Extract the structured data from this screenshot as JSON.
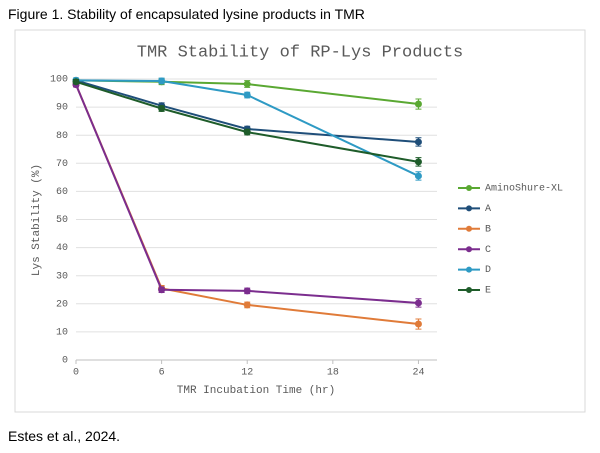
{
  "caption": "Figure 1. Stability of encapsulated lysine products in TMR",
  "source": "Estes et al., 2024.",
  "chart_data": {
    "type": "line",
    "title": "TMR Stability of RP-Lys Products",
    "x_label": "TMR Incubation Time (hr)",
    "y_label": "Lys Stability (%)",
    "x": [
      0,
      6,
      12,
      24
    ],
    "xlim": [
      0,
      25.3
    ],
    "xticks": [
      0,
      6,
      12,
      18,
      24
    ],
    "ylim": [
      0,
      100
    ],
    "yticks": [
      0,
      10,
      20,
      30,
      40,
      50,
      60,
      70,
      80,
      90,
      100
    ],
    "grid": true,
    "legend": "right",
    "series": [
      {
        "name": "AminoShure-XL",
        "color": "#5aa832",
        "values": [
          99.5,
          99,
          98.2,
          91.1
        ],
        "errors": [
          0.8,
          1,
          1.2,
          1.8
        ]
      },
      {
        "name": "A",
        "color": "#1f4e79",
        "values": [
          99.5,
          90.5,
          82.2,
          77.6
        ],
        "errors": [
          0.8,
          1,
          1,
          1.5
        ]
      },
      {
        "name": "B",
        "color": "#e07b39",
        "values": [
          98,
          25.5,
          19.6,
          12.8
        ],
        "errors": [
          0.8,
          1,
          1,
          1.8
        ]
      },
      {
        "name": "C",
        "color": "#7b2d8e",
        "values": [
          98,
          25,
          24.6,
          20.3
        ],
        "errors": [
          0.8,
          1,
          1,
          1.5
        ]
      },
      {
        "name": "D",
        "color": "#2e9ac4",
        "values": [
          99.5,
          99.3,
          94.3,
          65.5
        ],
        "errors": [
          0.8,
          1,
          1,
          1.5
        ]
      },
      {
        "name": "E",
        "color": "#1e5c2a",
        "values": [
          99,
          89.5,
          81.1,
          70.5
        ],
        "errors": [
          0.8,
          1,
          1,
          1.5
        ]
      }
    ]
  }
}
